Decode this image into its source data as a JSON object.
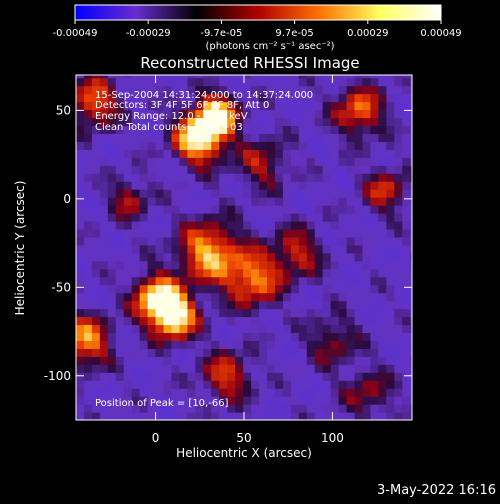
{
  "chart_data": {
    "type": "heatmap",
    "title": "Reconstructed RHESSI Image",
    "xlabel": "Heliocentric X (arcsec)",
    "ylabel": "Heliocentric Y (arcsec)",
    "xlim": [
      -45,
      145
    ],
    "ylim": [
      -125,
      70
    ],
    "x_ticks": [
      {
        "value": 0,
        "label": "0"
      },
      {
        "value": 50,
        "label": "50"
      },
      {
        "value": 100,
        "label": "100"
      }
    ],
    "y_ticks": [
      {
        "value": 50,
        "label": "50"
      },
      {
        "value": 0,
        "label": "0"
      },
      {
        "value": -50,
        "label": "-50"
      },
      {
        "value": -100,
        "label": "-100"
      }
    ],
    "annotations": [
      "15-Sep-2004 14:31:24.000 to 14:37:24.000",
      "Detectors: 3F 4F 5F 6F 7F 8F, Att 0",
      "Energy Range: 12.0 - 25.0 keV",
      "Clean    Total counts: 3.86E+03"
    ],
    "peak_annotation": "Position of Peak = [10,-66]",
    "peak_position": [
      10,
      -66
    ],
    "colorbar": {
      "range": [
        -0.00049,
        0.00049
      ],
      "tick_labels": [
        "-0.00049",
        "-0.00029",
        "-9.7e-05",
        "9.7e-05",
        "0.00029",
        "0.00049"
      ],
      "unit_label": "(photons cm⁻² s⁻¹ asec⁻²)",
      "colors": [
        "#0000ff",
        "#6a2bd0",
        "#000000",
        "#b00000",
        "#ff7000",
        "#ffff60",
        "#ffffff"
      ]
    },
    "blobs": [
      {
        "x": 25,
        "y": 35,
        "amp": 1.0,
        "s": 10
      },
      {
        "x": 35,
        "y": 48,
        "amp": 0.85,
        "s": 8
      },
      {
        "x": 10,
        "y": -66,
        "amp": 1.0,
        "s": 9
      },
      {
        "x": 0,
        "y": -55,
        "amp": 0.8,
        "s": 9
      },
      {
        "x": 30,
        "y": -30,
        "amp": 0.75,
        "s": 12
      },
      {
        "x": 55,
        "y": -45,
        "amp": 0.65,
        "s": 11
      },
      {
        "x": 80,
        "y": -30,
        "amp": 0.45,
        "s": 10
      },
      {
        "x": -40,
        "y": -80,
        "amp": 0.7,
        "s": 10
      },
      {
        "x": 115,
        "y": 50,
        "amp": 0.6,
        "s": 10
      },
      {
        "x": 130,
        "y": 5,
        "amp": 0.45,
        "s": 9
      },
      {
        "x": -35,
        "y": 55,
        "amp": 0.6,
        "s": 10
      },
      {
        "x": 60,
        "y": 20,
        "amp": 0.4,
        "s": 10
      },
      {
        "x": 40,
        "y": -100,
        "amp": 0.5,
        "s": 10
      },
      {
        "x": 100,
        "y": -80,
        "amp": 0.35,
        "s": 10
      },
      {
        "x": -15,
        "y": 0,
        "amp": 0.4,
        "s": 8
      },
      {
        "x": 120,
        "y": -110,
        "amp": 0.35,
        "s": 10
      }
    ]
  },
  "footer": {
    "date": "3-May-2022 16:16"
  }
}
